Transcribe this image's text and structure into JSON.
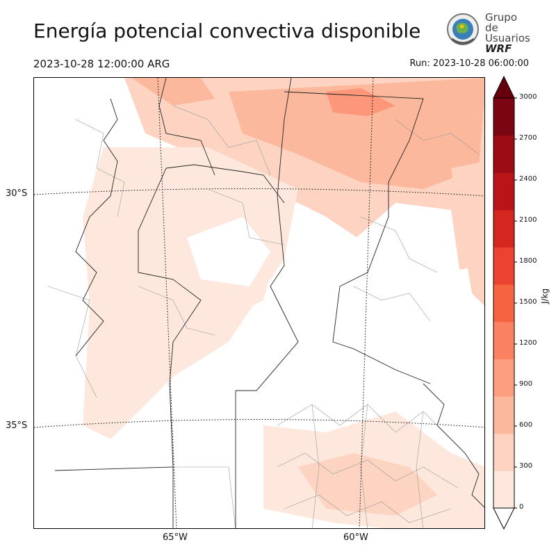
{
  "title": "Energía potencial convectiva disponible",
  "valid_time": "2023-10-28 12:00:00 ARG",
  "run_time": "Run: 2023-10-28 06:00:00",
  "logo": {
    "line1": "Grupo de",
    "line2": "Usuarios",
    "line3": "WRF"
  },
  "map": {
    "lat_labels": [
      "30°S",
      "35°S"
    ],
    "lon_labels": [
      "65°W",
      "60°W"
    ],
    "gridlines": "dotted"
  },
  "colorbar": {
    "unit": "J/kg",
    "ticks": [
      "0",
      "300",
      "600",
      "900",
      "1200",
      "1500",
      "1800",
      "2100",
      "2400",
      "2700",
      "3000"
    ],
    "colors": [
      "#fee8de",
      "#fdd3c1",
      "#fcb89c",
      "#fc9f7f",
      "#fb8163",
      "#f6643f",
      "#ec4330",
      "#d52720",
      "#b91519",
      "#9b0c14",
      "#7a0612"
    ],
    "extend": "both"
  }
}
